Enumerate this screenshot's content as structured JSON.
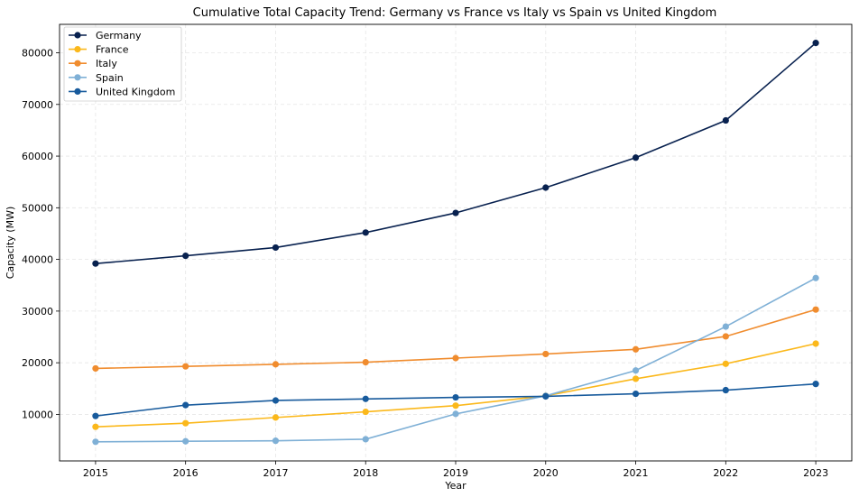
{
  "chart_data": {
    "type": "line",
    "title": "Cumulative Total Capacity Trend: Germany vs France vs Italy vs Spain vs United Kingdom",
    "xlabel": "Year",
    "ylabel": "Capacity (MW)",
    "x": [
      2015,
      2016,
      2017,
      2018,
      2019,
      2020,
      2021,
      2022,
      2023
    ],
    "xlim": [
      2014.6,
      2023.4
    ],
    "ylim": [
      1000,
      85500
    ],
    "yticks": [
      10000,
      20000,
      30000,
      40000,
      50000,
      60000,
      70000,
      80000
    ],
    "grid": true,
    "legend_position": "top-left",
    "series": [
      {
        "name": "Germany",
        "color": "#08214f",
        "values": [
          39200,
          40700,
          42300,
          45200,
          49000,
          53900,
          59700,
          66900,
          81900
        ]
      },
      {
        "name": "France",
        "color": "#fbb81b",
        "values": [
          7600,
          8300,
          9400,
          10500,
          11700,
          13600,
          16900,
          19800,
          23700
        ]
      },
      {
        "name": "Italy",
        "color": "#f08c2e",
        "values": [
          18900,
          19300,
          19700,
          20100,
          20900,
          21700,
          22600,
          25100,
          30300
        ]
      },
      {
        "name": "Spain",
        "color": "#7fb0d6",
        "values": [
          4700,
          4800,
          4900,
          5200,
          10100,
          13600,
          18500,
          27000,
          36400
        ]
      },
      {
        "name": "United Kingdom",
        "color": "#175a9c",
        "values": [
          9700,
          11800,
          12700,
          13000,
          13300,
          13500,
          14000,
          14700,
          15900
        ]
      }
    ]
  }
}
